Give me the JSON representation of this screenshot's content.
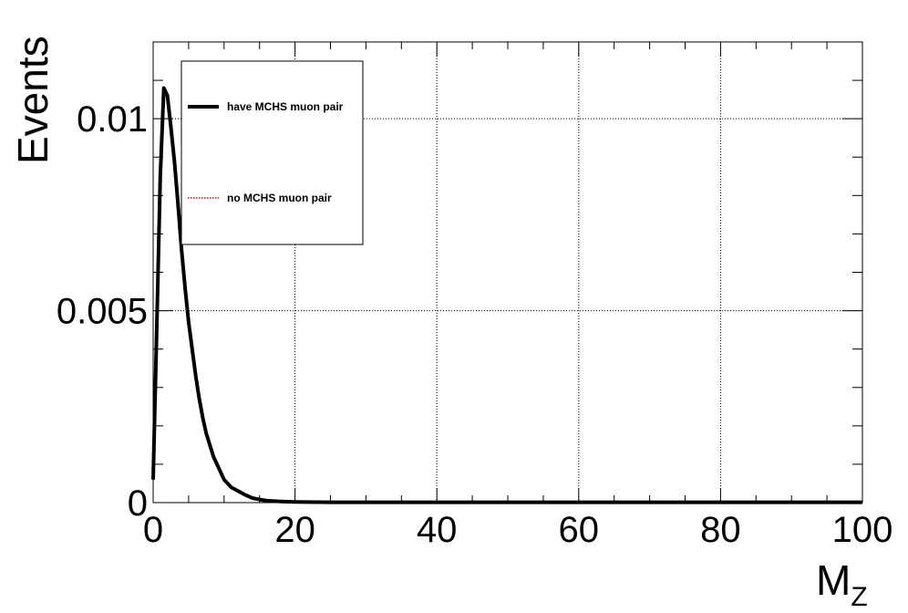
{
  "chart_data": {
    "type": "line",
    "xlabel": "M",
    "xlabel_sub": "Z",
    "ylabel": "Events",
    "xlim": [
      0,
      100
    ],
    "ylim": [
      0,
      0.012
    ],
    "x_ticks": [
      0,
      20,
      40,
      60,
      80,
      100
    ],
    "x_tick_labels": [
      "0",
      "20",
      "40",
      "60",
      "80",
      "100"
    ],
    "y_ticks": [
      0,
      0.005,
      0.01
    ],
    "y_tick_labels": [
      "0",
      "0.005",
      "0.01"
    ],
    "grid": true,
    "legend_position": "top-left",
    "series": [
      {
        "name": "have MCHS muon pair",
        "color": "#000000",
        "style": "solid",
        "x": [
          0,
          0.5,
          1,
          1.5,
          2,
          2.5,
          3,
          3.5,
          4,
          4.5,
          5,
          5.5,
          6,
          6.5,
          7,
          7.5,
          8,
          8.5,
          9,
          9.5,
          10,
          11,
          12,
          13,
          14,
          15,
          16,
          18,
          20,
          25,
          30,
          40,
          50,
          60,
          70,
          80,
          90,
          95,
          100
        ],
        "values": [
          0.0006,
          0.0045,
          0.0085,
          0.0108,
          0.0106,
          0.0098,
          0.0089,
          0.0078,
          0.0066,
          0.0056,
          0.0047,
          0.004,
          0.0033,
          0.0027,
          0.0022,
          0.0018,
          0.0015,
          0.0012,
          0.001,
          0.0008,
          0.0006,
          0.0004,
          0.0003,
          0.0002,
          0.00012,
          8e-05,
          5e-05,
          3e-05,
          2e-05,
          1e-05,
          1e-05,
          1e-05,
          1e-05,
          1e-05,
          1e-05,
          1e-05,
          1e-05,
          1e-05,
          1e-05
        ]
      },
      {
        "name": "no MCHS muon pair",
        "color": "#cc0000",
        "style": "dotted",
        "x": [],
        "values": []
      }
    ]
  }
}
